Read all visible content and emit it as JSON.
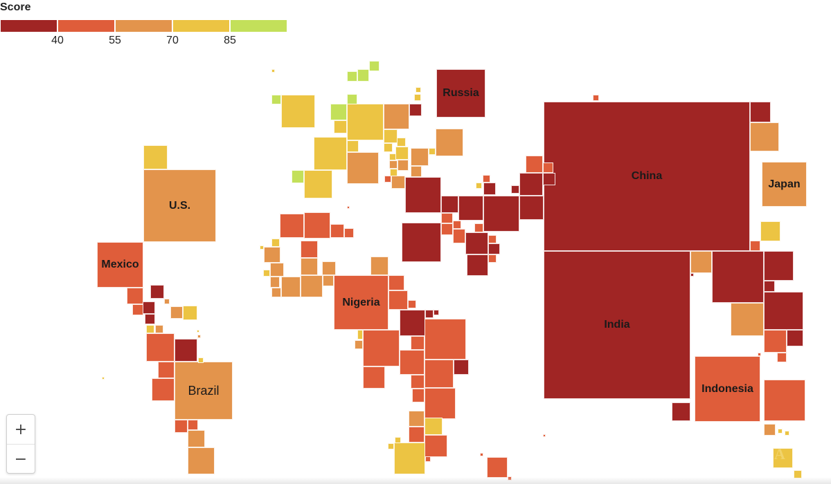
{
  "legend": {
    "title": "Score",
    "ticks": [
      "40",
      "55",
      "70",
      "85"
    ],
    "bins": [
      {
        "color": "#a02524",
        "range": "<40"
      },
      {
        "color": "#df5d3a",
        "range": "40–55"
      },
      {
        "color": "#e3944c",
        "range": "55–70"
      },
      {
        "color": "#ecc443",
        "range": "70–85"
      },
      {
        "color": "#c3e05a",
        "range": ">85"
      }
    ]
  },
  "countries": {
    "china": "China",
    "india": "India",
    "us": "U.S.",
    "russia": "Russia",
    "japan": "Japan",
    "mexico": "Mexico",
    "nigeria": "Nigeria",
    "brazil": "Brazil",
    "indonesia": "Indonesia"
  },
  "zoom": {
    "in": "+",
    "out": "−"
  },
  "watermark": "A"
}
